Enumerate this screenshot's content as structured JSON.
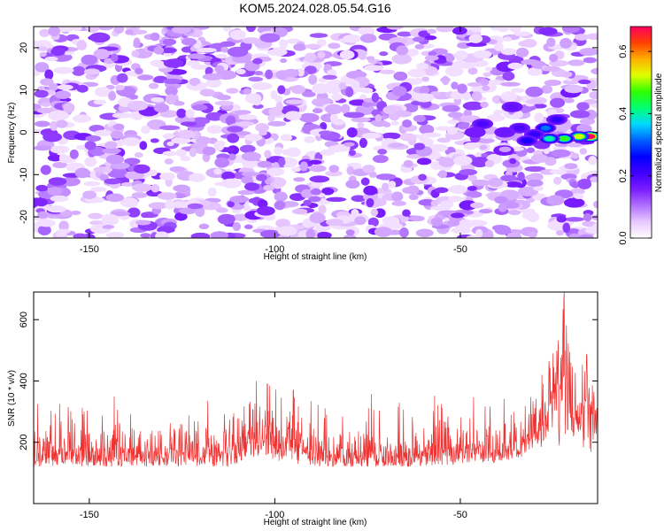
{
  "title": "KOM5.2024.028.05.54.G16",
  "chart_data": [
    {
      "type": "heatmap",
      "xlabel": "Height of straight line (km)",
      "ylabel": "Frequency (Hz)",
      "xlim": [
        -165,
        -13
      ],
      "ylim": [
        -25,
        25
      ],
      "xticks": [
        -150,
        -100,
        -50
      ],
      "yticks": [
        -20,
        -10,
        0,
        10,
        20
      ],
      "colorbar": {
        "label": "Normalized spectral amplitude",
        "range": [
          0.0,
          0.68
        ],
        "ticks": [
          0.0,
          0.2,
          0.4,
          0.6
        ],
        "colors": [
          "#ffffff",
          "#e8c8ff",
          "#b070ff",
          "#7a1cff",
          "#4000ff",
          "#0000ff",
          "#0060ff",
          "#00d8ff",
          "#00ff70",
          "#30ff00",
          "#e0ff00",
          "#ffb000",
          "#ff4000",
          "#ff0060"
        ]
      },
      "background_level": [
        0.05,
        0.16
      ],
      "features": [
        {
          "x": -15,
          "y": -1,
          "value": 0.68
        },
        {
          "x": -18,
          "y": -1,
          "value": 0.52
        },
        {
          "x": -22,
          "y": -1.5,
          "value": 0.46
        },
        {
          "x": -26,
          "y": -1.5,
          "value": 0.4
        },
        {
          "x": -27,
          "y": 1,
          "value": 0.32
        },
        {
          "x": -30,
          "y": -0.5,
          "value": 0.22
        },
        {
          "x": -32,
          "y": -2,
          "value": 0.24
        },
        {
          "x": -34,
          "y": 1,
          "value": 0.2
        },
        {
          "x": -36,
          "y": 6,
          "value": 0.18
        },
        {
          "x": -38,
          "y": 0,
          "value": 0.17
        },
        {
          "x": -44,
          "y": 2,
          "value": 0.2
        },
        {
          "x": -46,
          "y": 0,
          "value": 0.16
        },
        {
          "x": -24,
          "y": 3,
          "value": 0.22
        }
      ]
    },
    {
      "type": "line",
      "xlabel": "Height of straight line (km)",
      "ylabel": "SNR (10 * v/v)",
      "xlim": [
        -165,
        -13
      ],
      "ylim": [
        0,
        690
      ],
      "xticks": [
        -150,
        -100,
        -50
      ],
      "yticks": [
        200,
        400,
        600
      ],
      "color": "#ee3333",
      "num_samples": 1520,
      "baseline_mean": 120,
      "noise_spread": 85,
      "peaks": [
        {
          "x": -105,
          "y": 400
        },
        {
          "x": -102,
          "y": 390
        },
        {
          "x": -95,
          "y": 370
        },
        {
          "x": -28,
          "y": 420
        },
        {
          "x": -25,
          "y": 490
        },
        {
          "x": -22,
          "y": 690
        },
        {
          "x": -16,
          "y": 480
        }
      ]
    }
  ]
}
